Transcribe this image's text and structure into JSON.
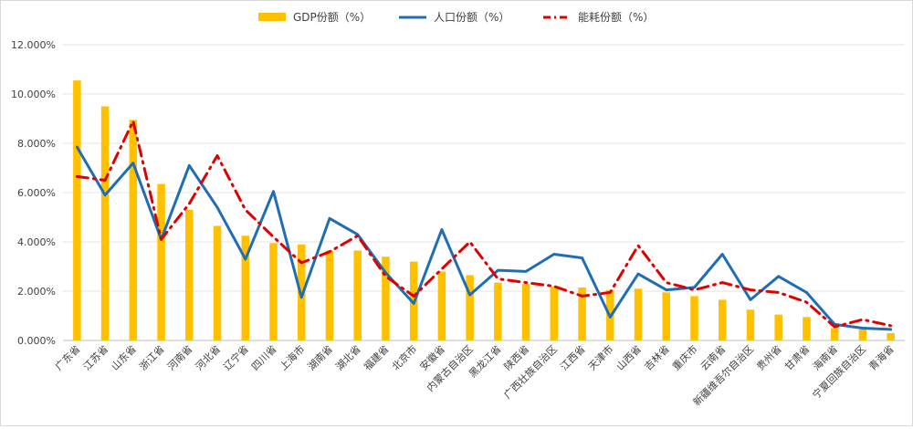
{
  "chart_data": {
    "type": "bar",
    "title": "",
    "xlabel": "",
    "ylabel": "",
    "ylim": [
      0,
      12
    ],
    "yticks": [
      "0.000%",
      "2.000%",
      "4.000%",
      "6.000%",
      "8.000%",
      "10.000%",
      "12.000%"
    ],
    "grid": true,
    "legend_position": "top",
    "categories": [
      "广东省",
      "江苏省",
      "山东省",
      "浙江省",
      "河南省",
      "河北省",
      "辽宁省",
      "四川省",
      "上海市",
      "湖南省",
      "湖北省",
      "福建省",
      "北京市",
      "安徽省",
      "内蒙古自治区",
      "黑龙江省",
      "陕西省",
      "广西壮族自治区",
      "江西省",
      "天津市",
      "山西省",
      "吉林省",
      "重庆市",
      "云南省",
      "新疆维吾尔自治区",
      "贵州省",
      "甘肃省",
      "海南省",
      "宁夏回族自治区",
      "青海省"
    ],
    "series": [
      {
        "name": "GDP份额（%）",
        "type": "bar",
        "color": "#FFC000",
        "values": [
          10.55,
          9.5,
          8.95,
          6.35,
          5.3,
          4.65,
          4.25,
          3.95,
          3.9,
          3.65,
          3.65,
          3.4,
          3.2,
          2.8,
          2.65,
          2.35,
          2.3,
          2.2,
          2.15,
          2.05,
          2.1,
          1.95,
          1.8,
          1.65,
          1.25,
          1.05,
          0.95,
          0.5,
          0.45,
          0.3
        ]
      },
      {
        "name": "人口份额（%）",
        "type": "line",
        "color": "#1F6DB5",
        "values": [
          7.85,
          5.9,
          7.2,
          4.1,
          7.1,
          5.4,
          3.3,
          6.05,
          1.75,
          4.95,
          4.3,
          2.75,
          1.5,
          4.5,
          1.85,
          2.85,
          2.8,
          3.5,
          3.35,
          0.95,
          2.7,
          2.05,
          2.15,
          3.5,
          1.65,
          2.6,
          1.95,
          0.65,
          0.5,
          0.45
        ]
      },
      {
        "name": "能耗份额（%）",
        "type": "line",
        "dash": "dashdot",
        "color": "#E00000",
        "values": [
          6.65,
          6.5,
          8.9,
          4.1,
          5.55,
          7.5,
          5.3,
          4.2,
          3.15,
          3.6,
          4.25,
          2.6,
          1.8,
          2.9,
          4.0,
          2.5,
          2.35,
          2.2,
          1.8,
          1.95,
          3.85,
          2.35,
          2.05,
          2.35,
          2.05,
          1.95,
          1.55,
          0.55,
          0.85,
          0.6
        ]
      }
    ]
  }
}
